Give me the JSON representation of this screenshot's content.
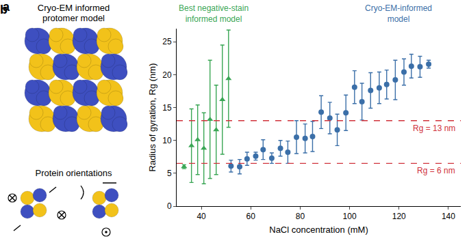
{
  "panel_a": {
    "label": "a",
    "title": [
      "Cryo-EM informed",
      "protomer model"
    ],
    "subtitle": "Protein orientations"
  },
  "chart_data": {
    "type": "scatter",
    "label": "b",
    "x_label": "NaCl concentration (mM)",
    "y_label": "Radius of gyration, Rg (nm)",
    "xlim": [
      30,
      145
    ],
    "xticks": [
      40,
      60,
      80,
      100,
      120,
      140
    ],
    "ylim": [
      0,
      27
    ],
    "yticks": [
      0,
      5,
      10,
      15,
      20,
      25
    ],
    "grid": false,
    "series": [
      {
        "label": [
          "Best negative-stain",
          "informed model"
        ],
        "color": "#3aa655",
        "marker": "triangle-up",
        "x": [
          33,
          36,
          38.5,
          41,
          43.5,
          46,
          48.5,
          51
        ],
        "values": [
          6.0,
          9.2,
          10.1,
          8.8,
          13.2,
          11.6,
          16.2,
          19.4
        ],
        "error": [
          0.3,
          5.6,
          5.3,
          5.4,
          9.0,
          6.8,
          8.3,
          7.4
        ]
      },
      {
        "label": [
          "Cryo-EM-informed",
          "model"
        ],
        "color": "#3b6fa8",
        "marker": "circle",
        "x": [
          52,
          55.5,
          58.5,
          62,
          65,
          68.5,
          72,
          75,
          78.5,
          82,
          85,
          88.5,
          92,
          95,
          98.5,
          102,
          105,
          108.5,
          112,
          115,
          118.5,
          122,
          125,
          128.5,
          132
        ],
        "values": [
          6.1,
          6.0,
          7.2,
          7.6,
          8.6,
          7.3,
          8.8,
          8.2,
          10.5,
          10.3,
          10.6,
          14.3,
          13.4,
          11.6,
          14.2,
          18.1,
          15.9,
          17.6,
          18.0,
          18.5,
          19.2,
          20.4,
          21.3,
          21.2,
          21.6
        ],
        "error": [
          0.9,
          1.1,
          1.0,
          0.6,
          1.5,
          0.8,
          1.2,
          1.7,
          2.5,
          2.2,
          2.3,
          2.5,
          2.4,
          2.4,
          2.7,
          2.5,
          2.8,
          2.7,
          2.4,
          2.2,
          3.0,
          2.0,
          1.8,
          1.6,
          0.6
        ]
      }
    ],
    "reference_lines": [
      {
        "value": 13,
        "label": "Rg = 13 nm",
        "color": "#d0313b",
        "line_style": "dash"
      },
      {
        "value": 6.5,
        "label": "Rg = 6 nm",
        "color": "#d0313b",
        "line_style": "dash"
      }
    ]
  }
}
